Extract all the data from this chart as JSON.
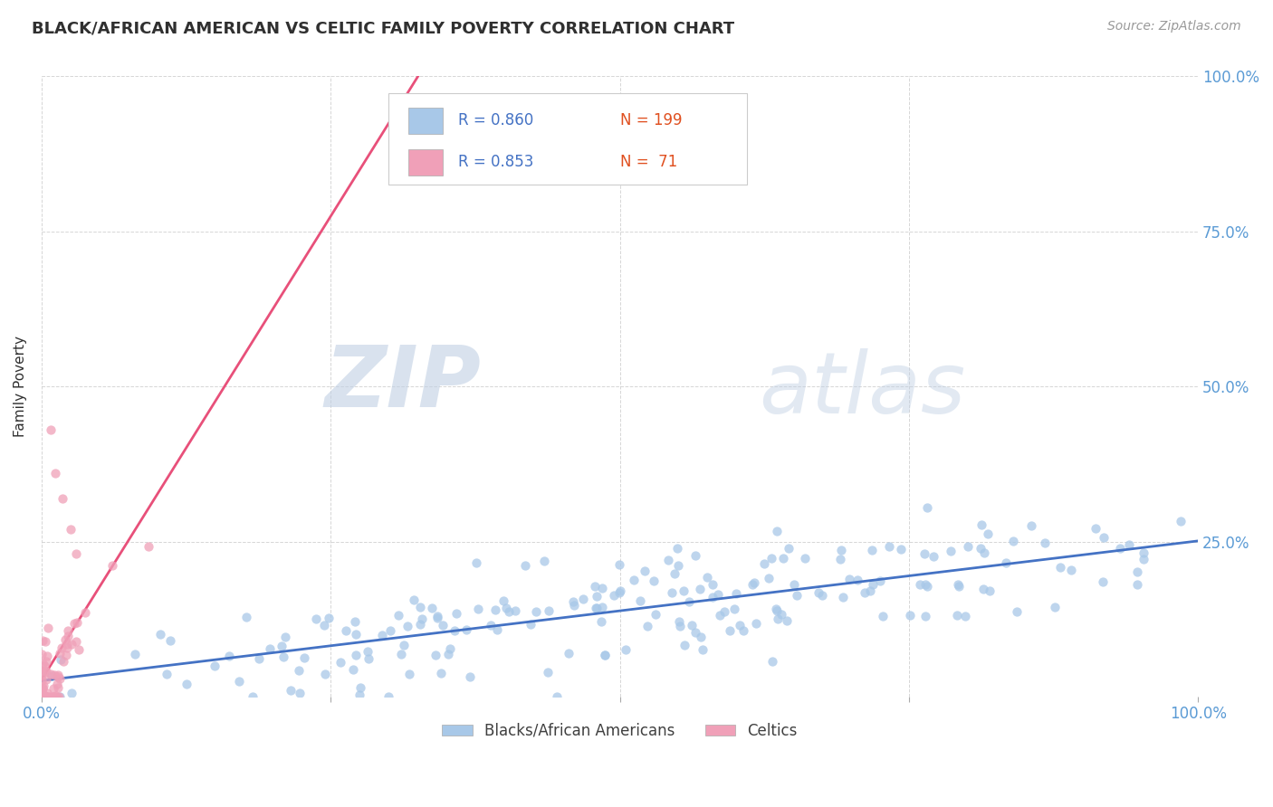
{
  "title": "BLACK/AFRICAN AMERICAN VS CELTIC FAMILY POVERTY CORRELATION CHART",
  "source": "Source: ZipAtlas.com",
  "ylabel": "Family Poverty",
  "watermark_zip": "ZIP",
  "watermark_atlas": "atlas",
  "legend_labels": [
    "Blacks/African Americans",
    "Celtics"
  ],
  "blue_R": 0.86,
  "blue_N": 199,
  "pink_R": 0.853,
  "pink_N": 71,
  "blue_color": "#A8C8E8",
  "pink_color": "#F0A0B8",
  "blue_line_color": "#4472C4",
  "pink_line_color": "#E8507A",
  "axis_label_color": "#5B9BD5",
  "title_color": "#303030",
  "legend_text_color": "#404040",
  "legend_R_color": "#4472C4",
  "legend_N_color": "#E05020",
  "xlim": [
    0,
    1
  ],
  "ylim": [
    0,
    1
  ],
  "background_color": "#FFFFFF",
  "grid_color": "#CCCCCC",
  "seed_blue": 42,
  "seed_pink": 99
}
